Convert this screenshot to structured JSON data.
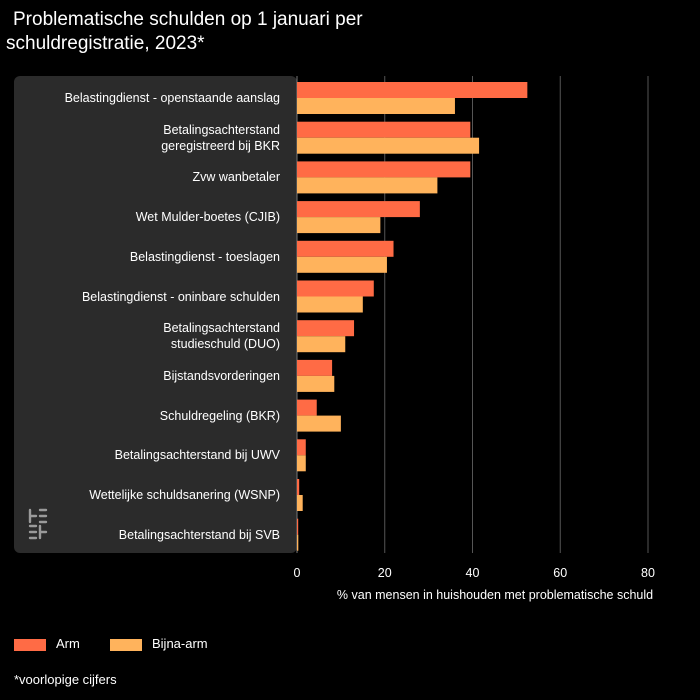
{
  "chart_data": {
    "type": "bar",
    "orientation": "horizontal",
    "title": "Problematische schulden op 1 januari per schuldregistratie, 2023*",
    "title_lines": [
      "Problematische schulden op 1 januari per",
      "schuldregistratie, 2023*"
    ],
    "categories": [
      "Belastingdienst - openstaande aanslag",
      "Betalingsachterstand\ngeregistreerd bij BKR",
      "Zvw wanbetaler",
      "Wet Mulder-boetes (CJIB)",
      "Belastingdienst - toeslagen",
      "Belastingdienst - oninbare schulden",
      "Betalingsachterstand\nstudieschuld (DUO)",
      "Bijstandsvorderingen",
      "Schuldregeling (BKR)",
      "Betalingsachterstand bij UWV",
      "Wettelijke schuldsanering (WSNP)",
      "Betalingsachterstand bij SVB"
    ],
    "series": [
      {
        "name": "Arm",
        "color": "#ff6b45",
        "values": [
          52.5,
          39.5,
          39.5,
          28,
          22,
          17.5,
          13,
          8,
          4.5,
          2,
          0.5,
          0.2
        ]
      },
      {
        "name": "Bijna-arm",
        "color": "#ffb35c",
        "values": [
          36,
          41.5,
          32,
          19,
          20.5,
          15,
          11,
          8.5,
          10,
          2,
          1.3,
          0.3
        ]
      }
    ],
    "xlabel": "% van mensen in huishouden met problematische schuld",
    "xlim": [
      0,
      80
    ],
    "xticks": [
      0,
      20,
      40,
      60,
      80
    ],
    "grid": true,
    "legend_position": "bottom-left"
  },
  "footnote": "*voorlopige cijfers",
  "colors": {
    "background": "#000000",
    "label_panel": "#2b2b2b",
    "grid": "#555555"
  },
  "icons": {
    "logo": "cbs-logo-icon"
  }
}
